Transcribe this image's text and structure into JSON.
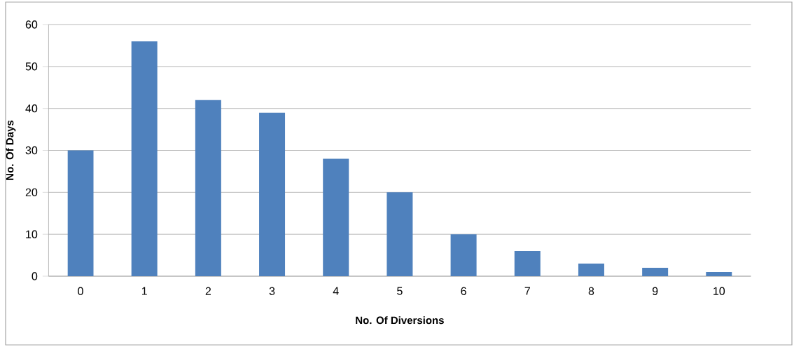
{
  "chart_data": {
    "type": "bar",
    "xlabel": "No. Of Diversions",
    "ylabel": "No. Of Days",
    "categories": [
      "0",
      "1",
      "2",
      "3",
      "4",
      "5",
      "6",
      "7",
      "8",
      "9",
      "10"
    ],
    "values": [
      30,
      56,
      42,
      39,
      28,
      20,
      10,
      6,
      3,
      2,
      1
    ],
    "color": "#4f81bd",
    "ylim": [
      0,
      60
    ],
    "yticks": [
      0,
      10,
      20,
      30,
      40,
      50,
      60
    ],
    "grid": "y"
  }
}
